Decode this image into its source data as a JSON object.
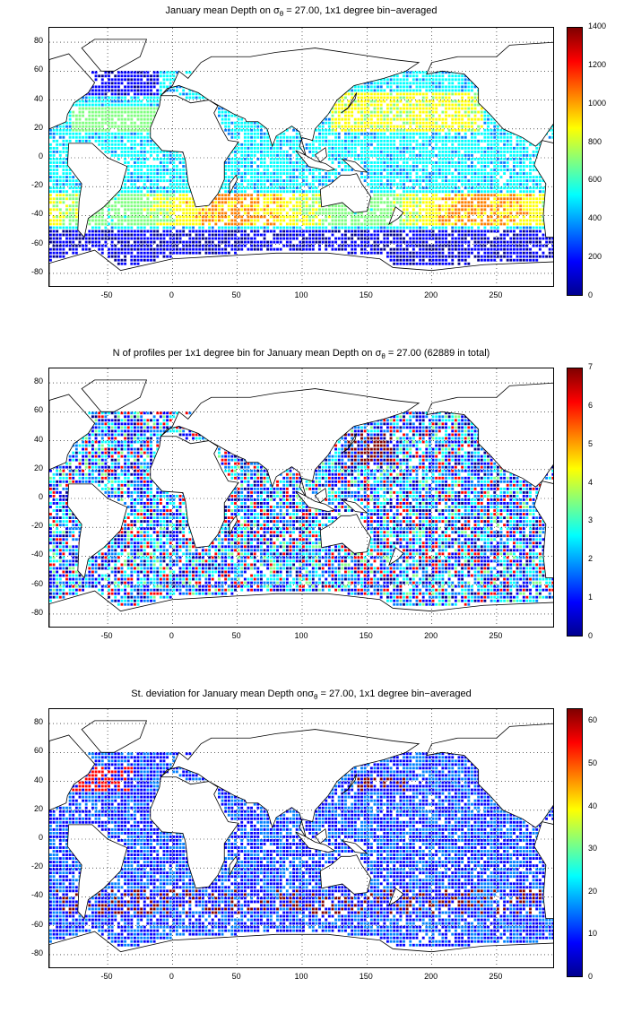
{
  "panels": [
    {
      "id": "mean",
      "title_pre": "January mean Depth on σ",
      "title_sub": "θ",
      "title_post": " = 27.00, 1x1 degree bin−averaged",
      "colorbar": {
        "min": 0,
        "max": 1400,
        "ticks": [
          "1400",
          "1200",
          "1000",
          "800",
          "600",
          "400",
          "200",
          "0"
        ]
      },
      "field": "mean_depth"
    },
    {
      "id": "count",
      "title_pre": "N of profiles per 1x1 degree bin for January mean Depth on σ",
      "title_sub": "θ",
      "title_post": " = 27.00 (62889 in total)",
      "colorbar": {
        "min": 0,
        "max": 7,
        "ticks": [
          "7",
          "6",
          "5",
          "4",
          "3",
          "2",
          "1",
          "0"
        ]
      },
      "field": "profile_count"
    },
    {
      "id": "std",
      "title_pre": "St. deviation for January mean Depth onσ",
      "title_sub": "θ",
      "title_post": " = 27.00, 1x1 degree bin−averaged",
      "colorbar": {
        "min": 0,
        "max": 63,
        "ticks": [
          "60",
          "50",
          "40",
          "30",
          "20",
          "10",
          "0"
        ]
      },
      "field": "std_depth"
    }
  ],
  "axes": {
    "x_ticks": [
      "-50",
      "0",
      "50",
      "100",
      "150",
      "200",
      "250"
    ],
    "y_ticks": [
      "80",
      "60",
      "40",
      "20",
      "0",
      "-20",
      "-40",
      "-60",
      "-80"
    ],
    "xlim": [
      -95,
      295
    ],
    "ylim": [
      -90,
      90
    ],
    "grid": "dotted"
  },
  "colormap": "jet",
  "colors": {
    "jet": [
      "#00008f",
      "#0000ff",
      "#0080ff",
      "#00ffff",
      "#80ff80",
      "#ffff00",
      "#ff8000",
      "#ff0000",
      "#800000"
    ],
    "land_fill": "#ffffff",
    "coast": "#000000"
  }
}
